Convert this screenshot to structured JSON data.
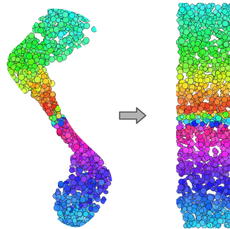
{
  "figure": {
    "left_panel": {
      "kind": "curved-point-cloud",
      "color_order_top_to_bottom": [
        "cyan",
        "green",
        "yellow",
        "orange",
        "red",
        "magenta",
        "violet",
        "blue",
        "cyan"
      ]
    },
    "arrow": {
      "direction": "right",
      "fill_color": "#b3b3b3",
      "stroke_color": "#555555"
    },
    "right_panel": {
      "kind": "rectangular-point-cloud",
      "color_order_top_to_bottom": [
        "cyan",
        "green",
        "yellow",
        "orange",
        "red",
        "magenta",
        "violet",
        "blue",
        "cyan"
      ]
    },
    "point_style": {
      "fill_opacity": 0.9,
      "outline_color": "#1a1a1a"
    }
  }
}
